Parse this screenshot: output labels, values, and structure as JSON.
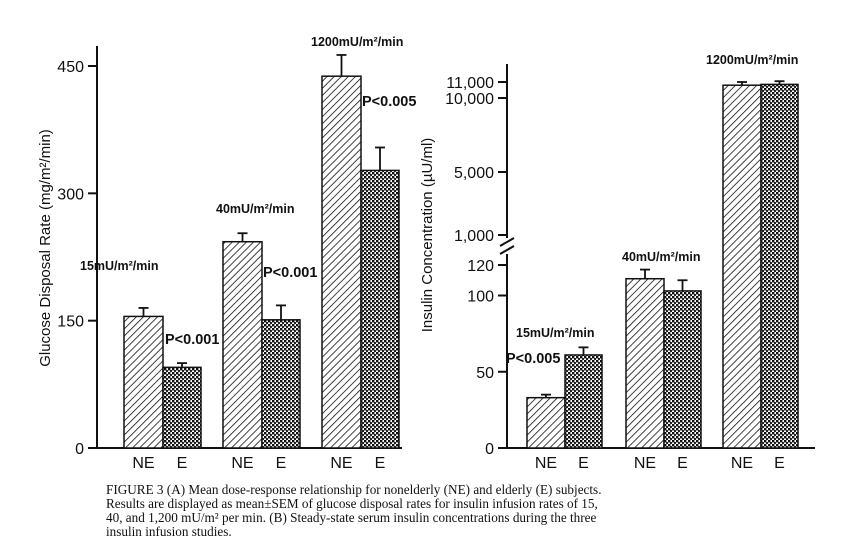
{
  "chart_data": [
    {
      "type": "bar",
      "panel": "A",
      "ylabel": "Glucose Disposal Rate (mg/m²/min)",
      "yticks": [
        "0",
        "150",
        "300",
        "450"
      ],
      "ylim": [
        0,
        480
      ],
      "groups": [
        {
          "label": "15mU/m²/min",
          "p": "P<0.001",
          "bars": [
            {
              "cat": "NE",
              "value": 155,
              "sem": 10
            },
            {
              "cat": "E",
              "value": 95,
              "sem": 5
            }
          ]
        },
        {
          "label": "40mU/m²/min",
          "p": "P<0.001",
          "bars": [
            {
              "cat": "NE",
              "value": 243,
              "sem": 10
            },
            {
              "cat": "E",
              "value": 151,
              "sem": 17
            }
          ]
        },
        {
          "label": "1200mU/m²/min",
          "p": "P<0.005",
          "bars": [
            {
              "cat": "NE",
              "value": 438,
              "sem": 25
            },
            {
              "cat": "E",
              "value": 327,
              "sem": 27
            }
          ]
        }
      ]
    },
    {
      "type": "bar",
      "panel": "B",
      "ylabel": "Insulin Concentration (µU/ml)",
      "yticks_lower": [
        "0",
        "50",
        "100",
        "120"
      ],
      "yticks_upper": [
        "1,000",
        "5,000",
        "10,000",
        "11,000"
      ],
      "axis_break": true,
      "groups": [
        {
          "label": "15mU/m²/min",
          "p": "P<0.005",
          "bars": [
            {
              "cat": "NE",
              "value": 33,
              "sem": 2
            },
            {
              "cat": "E",
              "value": 61,
              "sem": 5
            }
          ]
        },
        {
          "label": "40mU/m²/min",
          "p": "",
          "bars": [
            {
              "cat": "NE",
              "value": 111,
              "sem": 6
            },
            {
              "cat": "E",
              "value": 103,
              "sem": 7
            }
          ]
        },
        {
          "label": "1200mU/m²/min",
          "p": "",
          "bars": [
            {
              "cat": "NE",
              "value": 10800,
              "sem": 200
            },
            {
              "cat": "E",
              "value": 10850,
              "sem": 200
            }
          ]
        }
      ]
    }
  ],
  "caption": {
    "lines": [
      "FIGURE 3  (A) Mean dose-response relationship for nonelderly (NE) and elderly (E) subjects.",
      "Results are displayed as mean±SEM of glucose disposal rates for insulin infusion rates of 15,",
      "40, and 1,200 mU/m² per min. (B) Steady-state serum insulin concentrations during the three",
      "insulin infusion studies."
    ]
  }
}
